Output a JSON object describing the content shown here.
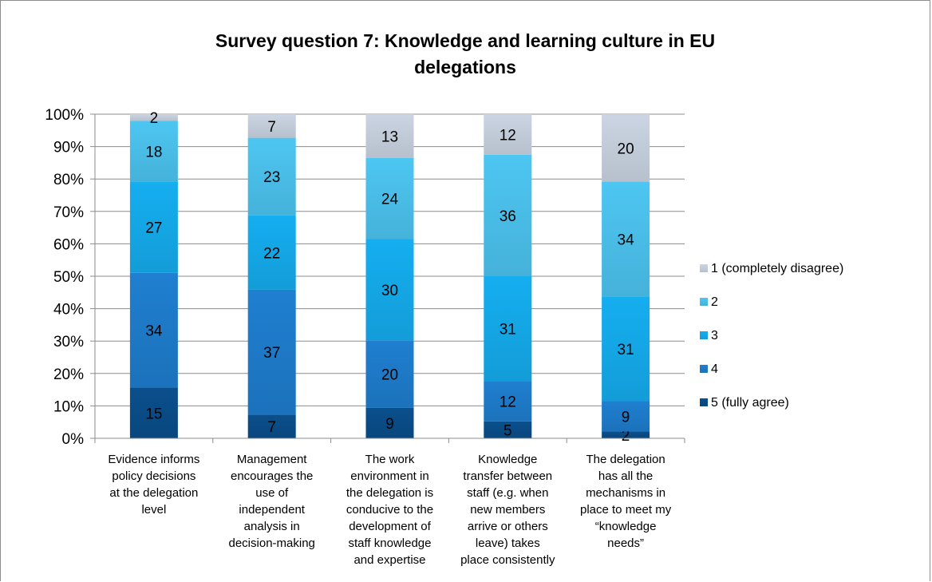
{
  "chart_data": {
    "type": "bar",
    "stacked": true,
    "percent_stacked": true,
    "title_lines": [
      "Survey question 7: Knowledge and learning culture in EU",
      "delegations"
    ],
    "categories": [
      [
        "Evidence informs",
        "policy decisions",
        "at the delegation",
        "level"
      ],
      [
        "Management",
        "encourages the",
        "use of",
        "independent",
        "analysis in",
        "decision-making"
      ],
      [
        "The work",
        "environment in",
        "the delegation is",
        "conducive to the",
        "development of",
        "staff knowledge",
        "and expertise"
      ],
      [
        "Knowledge",
        "transfer between",
        "staff (e.g. when",
        "new members",
        "arrive or others",
        "leave) takes",
        "place consistently"
      ],
      [
        "The delegation",
        "has all the",
        "mechanisms in",
        "place to meet my",
        "“knowledge",
        "needs”"
      ]
    ],
    "series": [
      {
        "name": "5 (fully agree)",
        "color": "#0a4f8c",
        "values": [
          15,
          7,
          9,
          5,
          2
        ]
      },
      {
        "name": "4",
        "color": "#1f7fd0",
        "values": [
          34,
          37,
          20,
          12,
          9
        ]
      },
      {
        "name": "3",
        "color": "#15aef0",
        "values": [
          27,
          22,
          30,
          31,
          31
        ]
      },
      {
        "name": "2",
        "color": "#4dc6f2",
        "values": [
          18,
          23,
          24,
          36,
          34
        ]
      },
      {
        "name": "1 (completely disagree)",
        "color": "#cbd5e3",
        "values": [
          2,
          7,
          13,
          12,
          20
        ]
      }
    ],
    "ylim": [
      0,
      100
    ],
    "yticks": [
      "0%",
      "10%",
      "20%",
      "30%",
      "40%",
      "50%",
      "60%",
      "70%",
      "80%",
      "90%",
      "100%"
    ],
    "grid": true,
    "legend_position": "right",
    "legend_order": [
      "1 (completely disagree)",
      "2",
      "3",
      "4",
      "5 (fully agree)"
    ]
  }
}
